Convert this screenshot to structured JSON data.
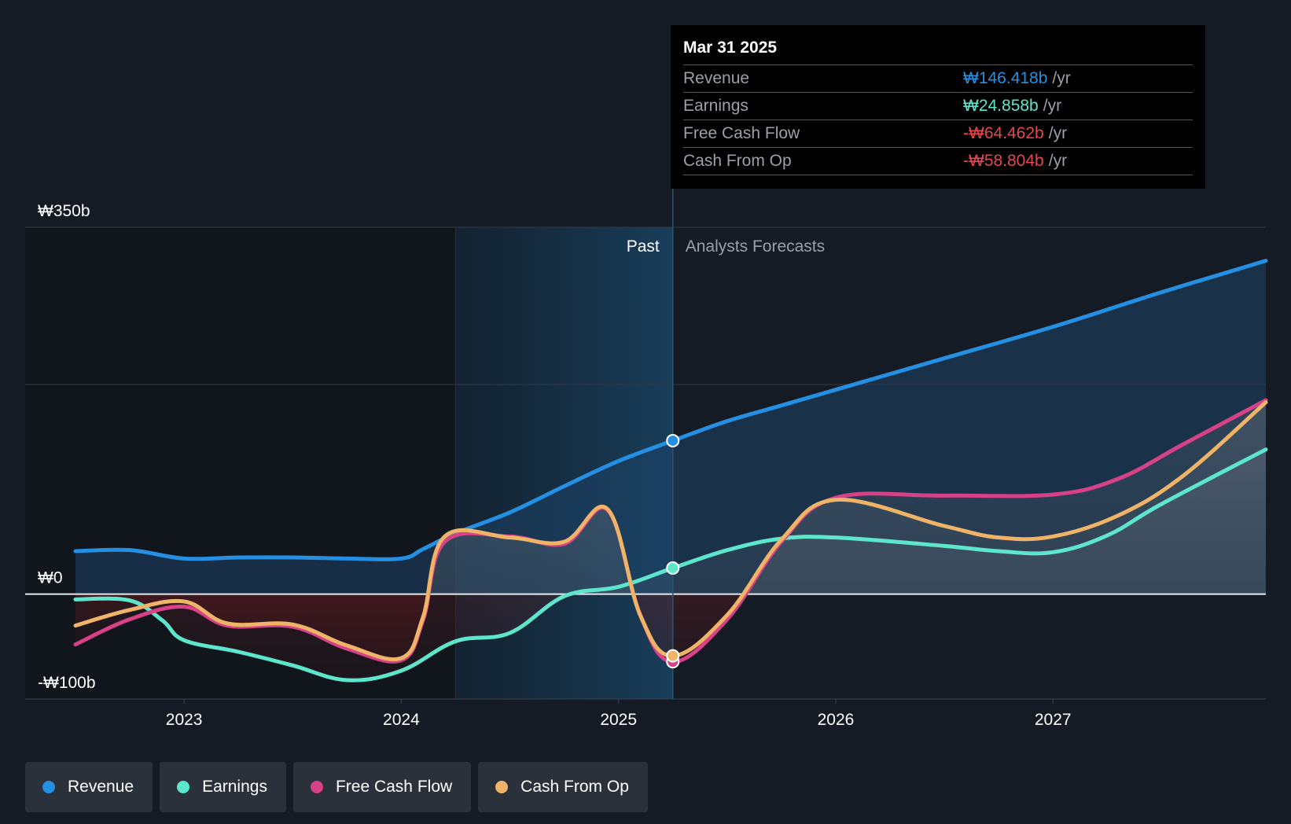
{
  "chart_data": {
    "type": "area",
    "y_axis": {
      "min": -100,
      "max": 350,
      "labels": [
        {
          "value": 350,
          "text": "₩350b"
        },
        {
          "value": 0,
          "text": "₩0"
        },
        {
          "value": -100,
          "text": "-₩100b"
        }
      ],
      "gridlines": [
        350,
        200
      ]
    },
    "x_axis": {
      "min": 2022.5,
      "max": 2027.98,
      "ticks": [
        {
          "value": 2023,
          "text": "2023"
        },
        {
          "value": 2024,
          "text": "2024"
        },
        {
          "value": 2025,
          "text": "2025"
        },
        {
          "value": 2026,
          "text": "2026"
        },
        {
          "value": 2027,
          "text": "2027"
        }
      ]
    },
    "past_label": "Past",
    "forecast_label": "Analysts Forecasts",
    "highlight_start": 2024.25,
    "divider_x": 2025.25,
    "series": [
      {
        "name": "Revenue",
        "color": "#2590e3",
        "points": [
          [
            2022.5,
            41
          ],
          [
            2022.75,
            42
          ],
          [
            2023.0,
            34
          ],
          [
            2023.25,
            35
          ],
          [
            2023.5,
            35
          ],
          [
            2023.75,
            34
          ],
          [
            2024.0,
            34
          ],
          [
            2024.1,
            43
          ],
          [
            2024.25,
            58
          ],
          [
            2024.5,
            78
          ],
          [
            2024.75,
            103
          ],
          [
            2025.0,
            127
          ],
          [
            2025.25,
            146.418
          ],
          [
            2025.5,
            165
          ],
          [
            2025.75,
            180
          ],
          [
            2026.0,
            195
          ],
          [
            2026.5,
            225
          ],
          [
            2027.0,
            255
          ],
          [
            2027.5,
            288
          ],
          [
            2027.98,
            318
          ]
        ]
      },
      {
        "name": "Earnings",
        "color": "#5ee6cd",
        "points": [
          [
            2022.5,
            -5
          ],
          [
            2022.75,
            -6
          ],
          [
            2022.9,
            -25
          ],
          [
            2023.0,
            -44
          ],
          [
            2023.25,
            -55
          ],
          [
            2023.5,
            -68
          ],
          [
            2023.75,
            -82
          ],
          [
            2024.0,
            -73
          ],
          [
            2024.25,
            -45
          ],
          [
            2024.5,
            -37
          ],
          [
            2024.75,
            -2
          ],
          [
            2025.0,
            7
          ],
          [
            2025.25,
            24.858
          ],
          [
            2025.5,
            42
          ],
          [
            2025.75,
            53
          ],
          [
            2026.0,
            54
          ],
          [
            2026.5,
            46
          ],
          [
            2026.75,
            41
          ],
          [
            2027.0,
            40
          ],
          [
            2027.25,
            56
          ],
          [
            2027.5,
            86
          ],
          [
            2027.98,
            138
          ]
        ]
      },
      {
        "name": "Free Cash Flow",
        "color": "#d64187",
        "points": [
          [
            2022.5,
            -48
          ],
          [
            2022.75,
            -24
          ],
          [
            2023.0,
            -12
          ],
          [
            2023.2,
            -30
          ],
          [
            2023.5,
            -31
          ],
          [
            2023.75,
            -52
          ],
          [
            2024.0,
            -63
          ],
          [
            2024.1,
            -25
          ],
          [
            2024.2,
            50
          ],
          [
            2024.5,
            55
          ],
          [
            2024.75,
            48
          ],
          [
            2024.95,
            80
          ],
          [
            2025.1,
            -20
          ],
          [
            2025.25,
            -64.462
          ],
          [
            2025.5,
            -24
          ],
          [
            2025.75,
            50
          ],
          [
            2026.0,
            92
          ],
          [
            2026.5,
            94
          ],
          [
            2027.0,
            95
          ],
          [
            2027.3,
            110
          ],
          [
            2027.6,
            143
          ],
          [
            2027.98,
            185
          ]
        ]
      },
      {
        "name": "Cash From Op",
        "color": "#f0b468",
        "points": [
          [
            2022.5,
            -30
          ],
          [
            2022.75,
            -15
          ],
          [
            2023.0,
            -7
          ],
          [
            2023.2,
            -28
          ],
          [
            2023.5,
            -29
          ],
          [
            2023.75,
            -49
          ],
          [
            2024.0,
            -61
          ],
          [
            2024.1,
            -22
          ],
          [
            2024.2,
            55
          ],
          [
            2024.5,
            54
          ],
          [
            2024.75,
            50
          ],
          [
            2024.95,
            81
          ],
          [
            2025.1,
            -20
          ],
          [
            2025.25,
            -58.804
          ],
          [
            2025.5,
            -20
          ],
          [
            2025.75,
            52
          ],
          [
            2026.0,
            90
          ],
          [
            2026.5,
            65
          ],
          [
            2026.75,
            54
          ],
          [
            2027.0,
            55
          ],
          [
            2027.3,
            75
          ],
          [
            2027.6,
            113
          ],
          [
            2027.98,
            183
          ]
        ]
      }
    ]
  },
  "tooltip": {
    "date": "Mar 31 2025",
    "rows": [
      {
        "label": "Revenue",
        "value": "₩146.418b",
        "unit": "/yr",
        "color": "#2590e3"
      },
      {
        "label": "Earnings",
        "value": "₩24.858b",
        "unit": "/yr",
        "color": "#5ee6cd"
      },
      {
        "label": "Free Cash Flow",
        "value": "-₩64.462b",
        "unit": "/yr",
        "color": "#e5474e"
      },
      {
        "label": "Cash From Op",
        "value": "-₩58.804b",
        "unit": "/yr",
        "color": "#e5474e"
      }
    ]
  },
  "legend": [
    {
      "label": "Revenue",
      "color": "#2590e3"
    },
    {
      "label": "Earnings",
      "color": "#5ee6cd"
    },
    {
      "label": "Free Cash Flow",
      "color": "#d64187"
    },
    {
      "label": "Cash From Op",
      "color": "#f0b468"
    }
  ]
}
